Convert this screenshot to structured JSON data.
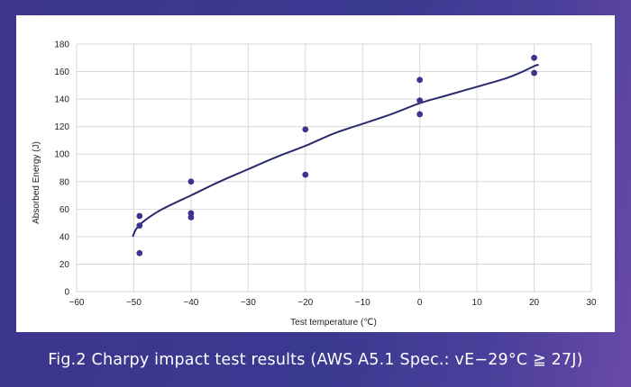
{
  "chart_data": {
    "type": "scatter",
    "xlabel": "Test temperature (℃)",
    "ylabel": "Absorbed Energy (J)",
    "xlim": [
      -60,
      30
    ],
    "ylim": [
      0,
      180
    ],
    "x_ticks": [
      -60,
      -50,
      -40,
      -30,
      -20,
      -10,
      0,
      10,
      20,
      30
    ],
    "y_ticks": [
      0,
      20,
      40,
      60,
      80,
      100,
      120,
      140,
      160,
      180
    ],
    "x_tick_labels": [
      "−60",
      "−50",
      "−40",
      "−30",
      "−20",
      "−10",
      "0",
      "10",
      "20",
      "30"
    ],
    "y_tick_labels": [
      "0",
      "20",
      "40",
      "60",
      "80",
      "100",
      "120",
      "140",
      "160",
      "180"
    ],
    "grid": true,
    "points": [
      {
        "x": -49,
        "y": 55
      },
      {
        "x": -49,
        "y": 48
      },
      {
        "x": -49,
        "y": 28
      },
      {
        "x": -40,
        "y": 80
      },
      {
        "x": -40,
        "y": 57
      },
      {
        "x": -40,
        "y": 54
      },
      {
        "x": -20,
        "y": 118
      },
      {
        "x": -20,
        "y": 85
      },
      {
        "x": 0,
        "y": 154
      },
      {
        "x": 0,
        "y": 139
      },
      {
        "x": 0,
        "y": 129
      },
      {
        "x": 20,
        "y": 170
      },
      {
        "x": 20,
        "y": 159
      }
    ],
    "trendline": {
      "x": [
        -50.2,
        -49.5,
        -48,
        -45,
        -40,
        -35,
        -30,
        -25,
        -20,
        -15,
        -10,
        -5,
        0,
        5,
        10,
        15,
        18,
        20,
        20.8
      ],
      "y": [
        40,
        46,
        52,
        60,
        70,
        80,
        89,
        98,
        106,
        115,
        122,
        129,
        137,
        143,
        149,
        155,
        160,
        164,
        165
      ]
    },
    "colors": {
      "marker": "#3b3590",
      "line": "#2a2a6e",
      "grid": "#d9d9d9",
      "axis_text": "#222222"
    }
  },
  "caption": "Fig.2 Charpy impact test results (AWS A5.1 Spec.: vE−29°C ≧ 27J)"
}
